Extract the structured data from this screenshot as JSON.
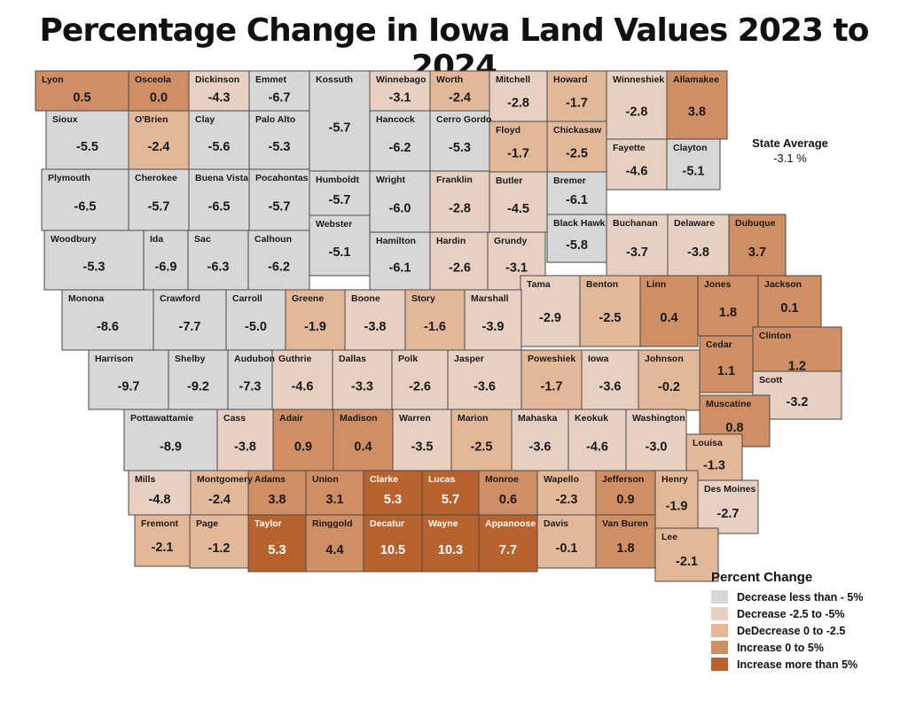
{
  "title": "Percentage Change in Iowa Land Values 2023 to 2024",
  "state_average": {
    "label": "State Average",
    "value": "-3.1 %"
  },
  "legend": {
    "title": "Percent Change",
    "items": [
      {
        "label": "Decrease less than - 5%",
        "color": "#d7d7d9"
      },
      {
        "label": "Decrease -2.5 to -5%",
        "color": "#e7cfc1"
      },
      {
        "label": "DeDecrease 0 to -2.5",
        "color": "#e3b899"
      },
      {
        "label": "Increase 0 to 5%",
        "color": "#cf8e64"
      },
      {
        "label": "Increase more than 5%",
        "color": "#b8622e"
      }
    ]
  },
  "counties": [
    {
      "name": "Lyon",
      "value": "0.5",
      "cls": 3
    },
    {
      "name": "Osceola",
      "value": "0.0",
      "cls": 3
    },
    {
      "name": "Dickinson",
      "value": "-4.3",
      "cls": 1
    },
    {
      "name": "Emmet",
      "value": "-6.7",
      "cls": 0
    },
    {
      "name": "Kossuth",
      "value": "-5.7",
      "cls": 0
    },
    {
      "name": "Winnebago",
      "value": "-3.1",
      "cls": 1
    },
    {
      "name": "Worth",
      "value": "-2.4",
      "cls": 2
    },
    {
      "name": "Mitchell",
      "value": "-2.8",
      "cls": 1
    },
    {
      "name": "Howard",
      "value": "-1.7",
      "cls": 2
    },
    {
      "name": "Winneshiek",
      "value": "-2.8",
      "cls": 1
    },
    {
      "name": "Allamakee",
      "value": "3.8",
      "cls": 3
    },
    {
      "name": "Sioux",
      "value": "-5.5",
      "cls": 0
    },
    {
      "name": "O'Brien",
      "value": "-2.4",
      "cls": 2
    },
    {
      "name": "Clay",
      "value": "-5.6",
      "cls": 0
    },
    {
      "name": "Palo Alto",
      "value": "-5.3",
      "cls": 0
    },
    {
      "name": "Hancock",
      "value": "-6.2",
      "cls": 0
    },
    {
      "name": "Cerro Gordo",
      "value": "-5.3",
      "cls": 0
    },
    {
      "name": "Floyd",
      "value": "-1.7",
      "cls": 2
    },
    {
      "name": "Chickasaw",
      "value": "-2.5",
      "cls": 2
    },
    {
      "name": "Fayette",
      "value": "-4.6",
      "cls": 1
    },
    {
      "name": "Clayton",
      "value": "-5.1",
      "cls": 0
    },
    {
      "name": "Plymouth",
      "value": "-6.5",
      "cls": 0
    },
    {
      "name": "Cherokee",
      "value": "-5.7",
      "cls": 0
    },
    {
      "name": "Buena Vista",
      "value": "-6.5",
      "cls": 0
    },
    {
      "name": "Pocahontas",
      "value": "-5.7",
      "cls": 0
    },
    {
      "name": "Humboldt",
      "value": "-5.7",
      "cls": 0
    },
    {
      "name": "Wright",
      "value": "-6.0",
      "cls": 0
    },
    {
      "name": "Franklin",
      "value": "-2.8",
      "cls": 1
    },
    {
      "name": "Butler",
      "value": "-4.5",
      "cls": 1
    },
    {
      "name": "Bremer",
      "value": "-6.1",
      "cls": 0
    },
    {
      "name": "Black Hawk",
      "value": "-5.8",
      "cls": 0
    },
    {
      "name": "Buchanan",
      "value": "-3.7",
      "cls": 1
    },
    {
      "name": "Delaware",
      "value": "-3.8",
      "cls": 1
    },
    {
      "name": "Dubuque",
      "value": "3.7",
      "cls": 3
    },
    {
      "name": "Webster",
      "value": "-5.1",
      "cls": 0
    },
    {
      "name": "Woodbury",
      "value": "-5.3",
      "cls": 0
    },
    {
      "name": "Ida",
      "value": "-6.9",
      "cls": 0
    },
    {
      "name": "Sac",
      "value": "-6.3",
      "cls": 0
    },
    {
      "name": "Calhoun",
      "value": "-6.2",
      "cls": 0
    },
    {
      "name": "Hamilton",
      "value": "-6.1",
      "cls": 0
    },
    {
      "name": "Hardin",
      "value": "-2.6",
      "cls": 1
    },
    {
      "name": "Grundy",
      "value": "-3.1",
      "cls": 1
    },
    {
      "name": "Tama",
      "value": "-2.9",
      "cls": 1
    },
    {
      "name": "Benton",
      "value": "-2.5",
      "cls": 2
    },
    {
      "name": "Linn",
      "value": "0.4",
      "cls": 3
    },
    {
      "name": "Jones",
      "value": "1.8",
      "cls": 3
    },
    {
      "name": "Jackson",
      "value": "0.1",
      "cls": 3
    },
    {
      "name": "Monona",
      "value": "-8.6",
      "cls": 0
    },
    {
      "name": "Crawford",
      "value": "-7.7",
      "cls": 0
    },
    {
      "name": "Carroll",
      "value": "-5.0",
      "cls": 0
    },
    {
      "name": "Greene",
      "value": "-1.9",
      "cls": 2
    },
    {
      "name": "Boone",
      "value": "-3.8",
      "cls": 1
    },
    {
      "name": "Story",
      "value": "-1.6",
      "cls": 2
    },
    {
      "name": "Marshall",
      "value": "-3.9",
      "cls": 1
    },
    {
      "name": "Cedar",
      "value": "1.1",
      "cls": 3
    },
    {
      "name": "Clinton",
      "value": "1.2",
      "cls": 3
    },
    {
      "name": "Harrison",
      "value": "-9.7",
      "cls": 0
    },
    {
      "name": "Shelby",
      "value": "-9.2",
      "cls": 0
    },
    {
      "name": "Audubon",
      "value": "-7.3",
      "cls": 0
    },
    {
      "name": "Guthrie",
      "value": "-4.6",
      "cls": 1
    },
    {
      "name": "Dallas",
      "value": "-3.3",
      "cls": 1
    },
    {
      "name": "Polk",
      "value": "-2.6",
      "cls": 1
    },
    {
      "name": "Jasper",
      "value": "-3.6",
      "cls": 1
    },
    {
      "name": "Poweshiek",
      "value": "-1.7",
      "cls": 2
    },
    {
      "name": "Iowa",
      "value": "-3.6",
      "cls": 1
    },
    {
      "name": "Johnson",
      "value": "-0.2",
      "cls": 2
    },
    {
      "name": "Scott",
      "value": "-3.2",
      "cls": 1
    },
    {
      "name": "Muscatine",
      "value": "0.8",
      "cls": 3
    },
    {
      "name": "Pottawattamie",
      "value": "-8.9",
      "cls": 0
    },
    {
      "name": "Cass",
      "value": "-3.8",
      "cls": 1
    },
    {
      "name": "Adair",
      "value": "0.9",
      "cls": 3
    },
    {
      "name": "Madison",
      "value": "0.4",
      "cls": 3
    },
    {
      "name": "Warren",
      "value": "-3.5",
      "cls": 1
    },
    {
      "name": "Marion",
      "value": "-2.5",
      "cls": 2
    },
    {
      "name": "Mahaska",
      "value": "-3.6",
      "cls": 1
    },
    {
      "name": "Keokuk",
      "value": "-4.6",
      "cls": 1
    },
    {
      "name": "Washington",
      "value": "-3.0",
      "cls": 1
    },
    {
      "name": "Louisa",
      "value": "-1.3",
      "cls": 2
    },
    {
      "name": "Mills",
      "value": "-4.8",
      "cls": 1
    },
    {
      "name": "Montgomery",
      "value": "-2.4",
      "cls": 2
    },
    {
      "name": "Adams",
      "value": "3.8",
      "cls": 3
    },
    {
      "name": "Union",
      "value": "3.1",
      "cls": 3
    },
    {
      "name": "Clarke",
      "value": "5.3",
      "cls": 4
    },
    {
      "name": "Lucas",
      "value": "5.7",
      "cls": 4
    },
    {
      "name": "Monroe",
      "value": "0.6",
      "cls": 3
    },
    {
      "name": "Wapello",
      "value": "-2.3",
      "cls": 2
    },
    {
      "name": "Jefferson",
      "value": "0.9",
      "cls": 3
    },
    {
      "name": "Henry",
      "value": "-1.9",
      "cls": 2
    },
    {
      "name": "Des Moines",
      "value": "-2.7",
      "cls": 1
    },
    {
      "name": "Fremont",
      "value": "-2.1",
      "cls": 2
    },
    {
      "name": "Page",
      "value": "-1.2",
      "cls": 2
    },
    {
      "name": "Taylor",
      "value": "5.3",
      "cls": 4
    },
    {
      "name": "Ringgold",
      "value": "4.4",
      "cls": 3
    },
    {
      "name": "Decatur",
      "value": "10.5",
      "cls": 4
    },
    {
      "name": "Wayne",
      "value": "10.3",
      "cls": 4
    },
    {
      "name": "Appanoose",
      "value": "7.7",
      "cls": 4
    },
    {
      "name": "Davis",
      "value": "-0.1",
      "cls": 2
    },
    {
      "name": "Van Buren",
      "value": "1.8",
      "cls": 3
    },
    {
      "name": "Lee",
      "value": "-2.1",
      "cls": 2
    }
  ]
}
